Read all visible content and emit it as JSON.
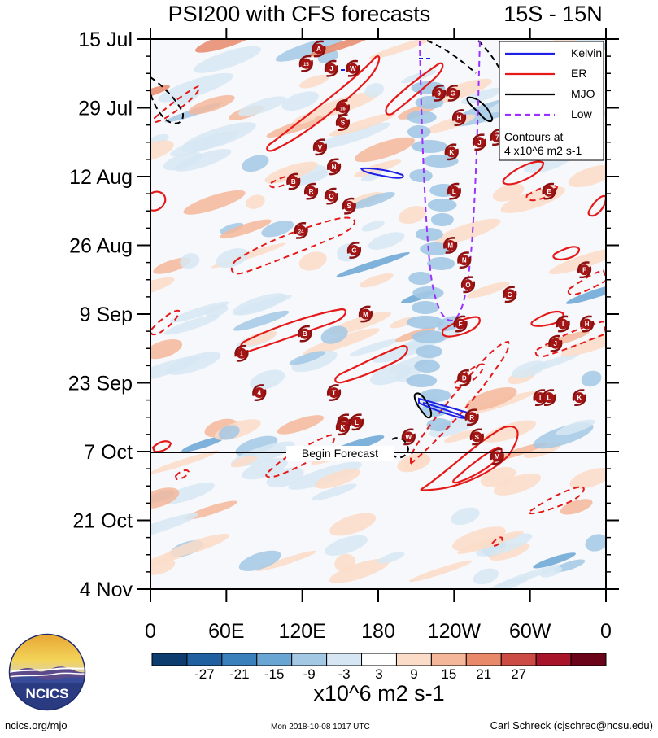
{
  "chart_data": {
    "type": "heatmap",
    "title": "PSI200 with CFS forecasts",
    "region": "15S - 15N",
    "y_tick_labels": [
      "15 Jul",
      "29 Jul",
      "12 Aug",
      "26 Aug",
      "9 Sep",
      "23 Sep",
      "7 Oct",
      "21 Oct",
      "4 Nov"
    ],
    "x_tick_labels": [
      "0",
      "60E",
      "120E",
      "180",
      "120W",
      "60W",
      "0"
    ],
    "x_range_deg": [
      0,
      360
    ],
    "time_range_days_from_15Jul": [
      0,
      112
    ],
    "colorbar_levels": [
      -30,
      -27,
      -24,
      -21,
      -18,
      -15,
      -12,
      -9,
      -6,
      -3,
      3,
      6,
      9,
      12,
      15,
      18,
      21,
      24,
      27,
      30
    ],
    "colorbar_colors": [
      "#0c3d6e",
      "#2060a0",
      "#3a80bd",
      "#6aa6d3",
      "#a3c8e4",
      "#d6e7f3",
      "#ffffff",
      "#fbdcc8",
      "#f4b79a",
      "#e8896a",
      "#cc4b45",
      "#a8142a",
      "#6b0418"
    ],
    "colorbar_tick_labels": [
      "-27",
      "-21",
      "-15",
      "-9",
      "-3",
      "3",
      "9",
      "15",
      "21",
      "27"
    ],
    "units": "x10^6 m2 s-1",
    "legend": [
      {
        "name": "Kelvin",
        "color": "#1f1fe6",
        "style": "solid"
      },
      {
        "name": "ER",
        "color": "#e61919",
        "style": "solid"
      },
      {
        "name": "MJO",
        "color": "#000000",
        "style": "solid"
      },
      {
        "name": "Low",
        "color": "#9b30ff",
        "style": "dashed"
      }
    ],
    "legend_note_line1": "Contours at",
    "legend_note_line2": "4 x10^6 m2 s-1",
    "forecast_label": "Begin Forecast",
    "forecast_day": 84,
    "storm_markers": [
      {
        "label": "A",
        "lon": 133,
        "day": 2
      },
      {
        "label": "15",
        "lon": 123,
        "day": 5
      },
      {
        "label": "J",
        "lon": 143,
        "day": 6
      },
      {
        "label": "W",
        "lon": 160,
        "day": 6
      },
      {
        "label": "9",
        "lon": 228,
        "day": 11
      },
      {
        "label": "G",
        "lon": 239,
        "day": 11
      },
      {
        "label": "16",
        "lon": 152,
        "day": 14
      },
      {
        "label": "H",
        "lon": 244,
        "day": 16
      },
      {
        "label": "S",
        "lon": 152,
        "day": 17
      },
      {
        "label": "7",
        "lon": 274,
        "day": 20
      },
      {
        "label": "J",
        "lon": 260,
        "day": 21
      },
      {
        "label": "V",
        "lon": 134,
        "day": 22
      },
      {
        "label": "K",
        "lon": 238,
        "day": 23
      },
      {
        "label": "N",
        "lon": 145,
        "day": 26
      },
      {
        "label": "B",
        "lon": 113,
        "day": 29
      },
      {
        "label": "R",
        "lon": 127,
        "day": 31
      },
      {
        "label": "L",
        "lon": 240,
        "day": 31
      },
      {
        "label": "E",
        "lon": 315,
        "day": 31
      },
      {
        "label": "O",
        "lon": 143,
        "day": 32
      },
      {
        "label": "S",
        "lon": 157,
        "day": 34
      },
      {
        "label": "24",
        "lon": 119,
        "day": 39
      },
      {
        "label": "M",
        "lon": 237,
        "day": 42
      },
      {
        "label": "G",
        "lon": 161,
        "day": 43
      },
      {
        "label": "N",
        "lon": 248,
        "day": 45
      },
      {
        "label": "F",
        "lon": 343,
        "day": 47
      },
      {
        "label": "O",
        "lon": 251,
        "day": 50
      },
      {
        "label": "G",
        "lon": 284,
        "day": 52
      },
      {
        "label": "M",
        "lon": 170,
        "day": 56
      },
      {
        "label": "F",
        "lon": 245,
        "day": 58
      },
      {
        "label": "I",
        "lon": 326,
        "day": 58
      },
      {
        "label": "H",
        "lon": 345,
        "day": 58
      },
      {
        "label": "B",
        "lon": 122,
        "day": 60
      },
      {
        "label": "J",
        "lon": 320,
        "day": 62
      },
      {
        "label": "1",
        "lon": 72,
        "day": 64
      },
      {
        "label": "D",
        "lon": 248,
        "day": 69
      },
      {
        "label": "4",
        "lon": 86,
        "day": 72
      },
      {
        "label": "T",
        "lon": 145,
        "day": 72
      },
      {
        "label": "I",
        "lon": 308,
        "day": 73
      },
      {
        "label": "L",
        "lon": 315,
        "day": 73
      },
      {
        "label": "K",
        "lon": 339,
        "day": 73
      },
      {
        "label": "R",
        "lon": 254,
        "day": 77
      },
      {
        "label": "20",
        "lon": 153,
        "day": 78
      },
      {
        "label": "L",
        "lon": 163,
        "day": 78
      },
      {
        "label": "K",
        "lon": 152,
        "day": 79
      },
      {
        "label": "W",
        "lon": 204,
        "day": 81
      },
      {
        "label": "S",
        "lon": 258,
        "day": 81
      },
      {
        "label": "M",
        "lon": 274,
        "day": 85
      }
    ]
  },
  "footer": {
    "left": "ncics.org/mjo",
    "center": "Mon 2018-10-08 1017 UTC",
    "right": "Carl Schreck (cjschrec@ncsu.edu)",
    "logo_text": "NCICS"
  }
}
